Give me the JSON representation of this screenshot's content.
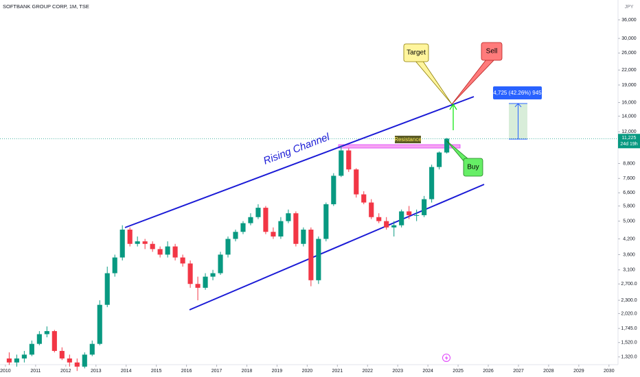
{
  "chart_data": {
    "type": "candlestick",
    "title": "SOFTBANK GROUP CORP, 1M, TSE",
    "currency": "JPY",
    "log_scale": true,
    "up_color": "#089981",
    "down_color": "#f23645",
    "x": [
      2010.125,
      2010.375,
      2010.625,
      2010.875,
      2011.125,
      2011.375,
      2011.625,
      2011.875,
      2012.125,
      2012.375,
      2012.625,
      2012.875,
      2013.125,
      2013.375,
      2013.625,
      2013.875,
      2014.125,
      2014.375,
      2014.625,
      2014.875,
      2015.125,
      2015.375,
      2015.625,
      2015.875,
      2016.125,
      2016.375,
      2016.625,
      2016.875,
      2017.125,
      2017.375,
      2017.625,
      2017.875,
      2018.125,
      2018.375,
      2018.625,
      2018.875,
      2019.125,
      2019.375,
      2019.625,
      2019.875,
      2020.125,
      2020.375,
      2020.625,
      2020.875,
      2021.125,
      2021.375,
      2021.625,
      2021.875,
      2022.125,
      2022.375,
      2022.625,
      2022.875,
      2023.125,
      2023.375,
      2023.625,
      2023.875,
      2024.125,
      2024.375,
      2024.625
    ],
    "open": [
      1300,
      1250,
      1300,
      1350,
      1500,
      1650,
      1700,
      1400,
      1300,
      1250,
      1200,
      1350,
      1500,
      2200,
      3000,
      3500,
      4600,
      4000,
      4100,
      4000,
      3800,
      3600,
      3900,
      3500,
      3300,
      2700,
      2600,
      2900,
      3000,
      3600,
      4200,
      4500,
      4900,
      5200,
      5700,
      4500,
      4300,
      5000,
      5400,
      4000,
      4600,
      2800,
      4200,
      5900,
      7800,
      10000,
      8300,
      6500,
      6000,
      5200,
      5000,
      4700,
      4800,
      5500,
      5300,
      5300,
      6200,
      8500,
      9800
    ],
    "high": [
      1380,
      1350,
      1400,
      1550,
      1700,
      1780,
      1720,
      1450,
      1350,
      1300,
      1380,
      1550,
      2300,
      3200,
      3600,
      4800,
      4700,
      4300,
      4200,
      4100,
      3900,
      4100,
      4000,
      3600,
      3400,
      2900,
      3000,
      3100,
      3700,
      4300,
      4600,
      5000,
      5400,
      5900,
      5800,
      4700,
      5200,
      5600,
      5500,
      4700,
      4700,
      4300,
      6000,
      8000,
      10500,
      10200,
      8400,
      6700,
      6200,
      5400,
      5200,
      5000,
      5600,
      5800,
      5600,
      6400,
      8700,
      9900,
      11300
    ],
    "low": [
      1220,
      1200,
      1250,
      1330,
      1480,
      1600,
      1380,
      1280,
      1200,
      1150,
      1180,
      1330,
      1480,
      2150,
      2900,
      3400,
      3900,
      3900,
      3800,
      3700,
      3500,
      3500,
      3400,
      3200,
      2600,
      2300,
      2550,
      2800,
      2950,
      3500,
      4100,
      4400,
      4800,
      5100,
      4400,
      4200,
      4200,
      4900,
      3900,
      3900,
      2640,
      2700,
      4100,
      5800,
      7700,
      8100,
      6300,
      5900,
      5100,
      4900,
      4600,
      4300,
      4700,
      5100,
      5000,
      5200,
      6000,
      8300,
      9700
    ],
    "close": [
      1250,
      1300,
      1350,
      1500,
      1650,
      1700,
      1400,
      1300,
      1250,
      1200,
      1350,
      1500,
      2200,
      3000,
      3500,
      4600,
      4000,
      4100,
      4000,
      3800,
      3600,
      3900,
      3500,
      3300,
      2700,
      2600,
      2900,
      3000,
      3600,
      4200,
      4500,
      4900,
      5200,
      5700,
      4500,
      4300,
      5000,
      5400,
      4000,
      4600,
      2800,
      4200,
      5900,
      7800,
      10000,
      8300,
      6500,
      6000,
      5200,
      5000,
      4700,
      4800,
      5500,
      5300,
      5300,
      6200,
      8500,
      9800,
      11225
    ],
    "xlim": [
      2009.82,
      2030.3
    ],
    "xticks": [
      2010,
      2011,
      2012,
      2013,
      2014,
      2015,
      2016,
      2017,
      2018,
      2019,
      2020,
      2021,
      2022,
      2023,
      2024,
      2025,
      2026,
      2027,
      2028,
      2029,
      2030
    ],
    "ylim": [
      1240,
      42000
    ],
    "yticks": [
      {
        "value": 1320,
        "label": "1,320.0"
      },
      {
        "value": 1520,
        "label": "1,520.0"
      },
      {
        "value": 1745,
        "label": "1,745.0"
      },
      {
        "value": 2020,
        "label": "2,020.0"
      },
      {
        "value": 2300,
        "label": "2,300.0"
      },
      {
        "value": 2700,
        "label": "2,700.0"
      },
      {
        "value": 3100,
        "label": "3,100"
      },
      {
        "value": 3600,
        "label": "3,600"
      },
      {
        "value": 4200,
        "label": "4,200"
      },
      {
        "value": 5000,
        "label": "5,000"
      },
      {
        "value": 5800,
        "label": "5,800"
      },
      {
        "value": 6600,
        "label": "6,600"
      },
      {
        "value": 7600,
        "label": "7,600"
      },
      {
        "value": 8800,
        "label": "8,800"
      },
      {
        "value": 12000,
        "label": "12,000"
      },
      {
        "value": 14000,
        "label": "14,000"
      },
      {
        "value": 16000,
        "label": "16,000"
      },
      {
        "value": 19000,
        "label": "19,000"
      },
      {
        "value": 22000,
        "label": "22,000"
      },
      {
        "value": 26000,
        "label": "26,000"
      },
      {
        "value": 30000,
        "label": "30,000"
      },
      {
        "value": 36000,
        "label": "36,000"
      }
    ],
    "last_price": {
      "value": 11225,
      "label": "11,225"
    },
    "countdown": "24d 19h",
    "annotations": {
      "channel": "Rising Channel",
      "resistance": "Resistance",
      "target": "Target",
      "sell": "Sell",
      "buy": "Buy",
      "measure": "4,725 (42.26%) 945"
    }
  }
}
